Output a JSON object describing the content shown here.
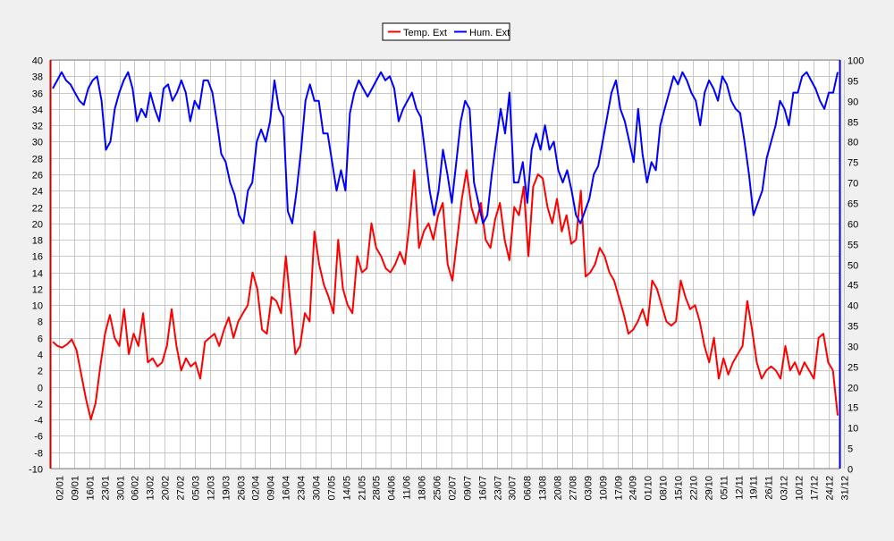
{
  "chart_data": {
    "type": "line",
    "title": "",
    "xlabel": "",
    "ylabel": "",
    "y_left_lim": [
      -10,
      40
    ],
    "y_right_lim": [
      0,
      100
    ],
    "y_left_ticks": [
      -10,
      -8,
      -6,
      -4,
      -2,
      0,
      2,
      4,
      6,
      8,
      10,
      12,
      14,
      16,
      18,
      20,
      22,
      24,
      26,
      28,
      30,
      32,
      34,
      36,
      38,
      40
    ],
    "y_right_ticks": [
      0,
      5,
      10,
      15,
      20,
      25,
      30,
      35,
      40,
      45,
      50,
      55,
      60,
      65,
      70,
      75,
      80,
      85,
      90,
      95,
      100
    ],
    "x_ticks": [
      "02/01",
      "09/01",
      "16/01",
      "23/01",
      "30/01",
      "06/02",
      "13/02",
      "20/02",
      "27/02",
      "05/03",
      "12/03",
      "19/03",
      "26/03",
      "02/04",
      "09/04",
      "16/04",
      "23/04",
      "30/04",
      "07/05",
      "14/05",
      "21/05",
      "28/05",
      "04/06",
      "11/06",
      "18/06",
      "25/06",
      "02/07",
      "09/07",
      "16/07",
      "23/07",
      "30/07",
      "06/08",
      "13/08",
      "20/08",
      "27/08",
      "03/09",
      "10/09",
      "17/09",
      "24/09",
      "01/10",
      "08/10",
      "15/10",
      "22/10",
      "29/10",
      "05/11",
      "12/11",
      "19/11",
      "26/11",
      "03/12",
      "10/12",
      "17/12",
      "24/12",
      "31/12"
    ],
    "grid": true,
    "legend": "top-center",
    "series": [
      {
        "name": "Temp. Ext",
        "axis": "left",
        "color": "#ff0000",
        "values": [
          5.5,
          5,
          4.8,
          5.2,
          5.8,
          4.5,
          1.5,
          -1.5,
          -4,
          -2,
          2.5,
          6.5,
          8.8,
          6,
          5,
          9.5,
          4,
          6.5,
          5,
          9,
          3,
          3.5,
          2.5,
          3,
          5,
          9.5,
          5,
          2,
          3.5,
          2.5,
          3,
          1,
          5.5,
          6,
          6.5,
          5,
          7,
          8.5,
          6,
          8,
          9,
          10,
          14,
          12,
          7,
          6.5,
          11,
          10.5,
          9,
          16,
          10,
          4,
          5,
          9,
          8,
          19,
          15,
          12.5,
          11,
          9,
          18,
          12,
          10,
          9,
          16,
          14,
          14.5,
          20,
          17,
          16,
          14.5,
          14,
          15,
          16.5,
          15,
          20,
          26.5,
          17,
          19,
          20,
          18,
          21,
          22.5,
          15,
          13,
          18,
          23,
          26.5,
          22,
          20,
          22.5,
          18,
          17,
          20.5,
          22.5,
          18,
          15.5,
          22,
          21,
          24.5,
          16,
          24.5,
          26,
          25.5,
          22,
          20,
          23,
          19,
          21,
          17.5,
          18,
          24,
          13.5,
          14,
          15,
          17,
          16,
          14,
          13,
          11,
          9,
          6.5,
          7,
          8,
          9.5,
          7.5,
          13,
          12,
          10,
          8,
          7.5,
          8,
          13,
          11,
          9.5,
          10,
          8,
          5,
          3,
          6,
          1,
          3.5,
          1.5,
          3,
          4,
          5,
          10.5,
          7,
          3,
          1,
          2,
          2.5,
          2,
          1,
          5,
          2,
          3,
          1.5,
          3,
          2,
          1,
          6,
          6.5,
          3,
          2,
          -3.5
        ]
      },
      {
        "name": "Hum. Ext",
        "axis": "right",
        "color": "#0000ff",
        "values": [
          93,
          95,
          97,
          95,
          94,
          92,
          90,
          89,
          93,
          95,
          96,
          90,
          78,
          80,
          88,
          92,
          95,
          97,
          93,
          85,
          88,
          86,
          92,
          88,
          85,
          93,
          94,
          90,
          92,
          95,
          92,
          85,
          90,
          88,
          95,
          95,
          92,
          85,
          77,
          75,
          70,
          67,
          62,
          60,
          68,
          70,
          80,
          83,
          80,
          85,
          95,
          88,
          86,
          63,
          60,
          68,
          78,
          90,
          94,
          90,
          90,
          82,
          82,
          75,
          68,
          73,
          68,
          87,
          92,
          95,
          93,
          91,
          93,
          95,
          97,
          95,
          96,
          93,
          85,
          88,
          90,
          92,
          88,
          86,
          77,
          68,
          62,
          68,
          78,
          72,
          65,
          75,
          85,
          90,
          88,
          70,
          65,
          60,
          62,
          72,
          80,
          88,
          82,
          92,
          70,
          70,
          75,
          65,
          78,
          82,
          78,
          84,
          78,
          80,
          73,
          70,
          73,
          68,
          62,
          60,
          63,
          66,
          72,
          74,
          80,
          86,
          92,
          95,
          88,
          85,
          80,
          75,
          88,
          77,
          70,
          75,
          73,
          84,
          88,
          92,
          96,
          94,
          97,
          95,
          92,
          90,
          84,
          92,
          95,
          93,
          90,
          96,
          94,
          90,
          88,
          87,
          80,
          72,
          62,
          65,
          68,
          76,
          80,
          84,
          90,
          88,
          84,
          92,
          92,
          96,
          97,
          95,
          93,
          90,
          88,
          92,
          92,
          97
        ]
      }
    ]
  }
}
